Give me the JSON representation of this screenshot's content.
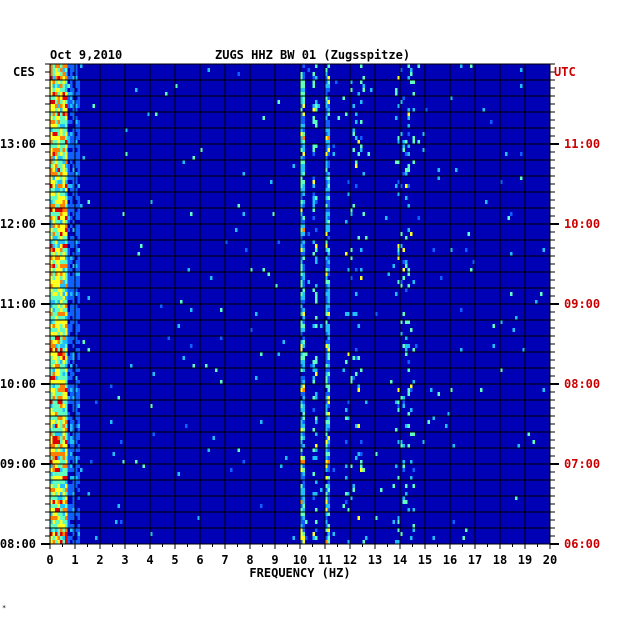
{
  "header": {
    "date": "Oct 9,2010",
    "station": "ZUGS HHZ BW 01 (Zugsspitze)"
  },
  "chart_data": {
    "type": "heatmap",
    "title": "ZUGS HHZ BW 01 (Zugsspitze)",
    "date": "Oct 9,2010",
    "xlabel": "FREQUENCY (HZ)",
    "left_axis_label": "CES",
    "right_axis_label": "UTC",
    "xlim": [
      0,
      20
    ],
    "x_ticks": [
      "0",
      "1",
      "2",
      "3",
      "4",
      "5",
      "6",
      "7",
      "8",
      "9",
      "10",
      "11",
      "12",
      "13",
      "14",
      "15",
      "16",
      "17",
      "18",
      "19",
      "20"
    ],
    "left_time_ticks": [
      "13:00",
      "12:00",
      "11:00",
      "10:00",
      "09:00",
      "08:00"
    ],
    "right_time_ticks": [
      "11:00",
      "10:00",
      "09:00",
      "08:00",
      "07:00",
      "06:00"
    ],
    "time_range_ces": [
      "08:00",
      "13:50"
    ],
    "colors": {
      "background": "#0000b4",
      "grid": "#000000",
      "utc_text": "#cc0000",
      "scale": [
        "#00009c",
        "#0010d8",
        "#1060ff",
        "#20c0ff",
        "#60ffc0",
        "#ffff20",
        "#ff8000",
        "#e00000"
      ]
    },
    "notes_visible": "Persistent high energy 0-0.6 Hz; spectral lines near 10 and 11 Hz; bursts near 12 Hz and 14 Hz"
  }
}
